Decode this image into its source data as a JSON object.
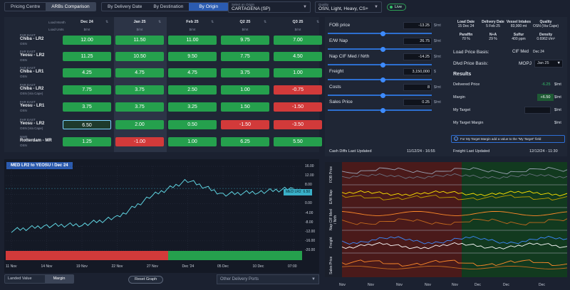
{
  "topbar": {
    "tabs": [
      "Pricing Centre",
      "ARBs Comparison"
    ],
    "views": [
      "By Delivery Date",
      "By Destination",
      "By Origin"
    ],
    "origin_caption": "Select an Origin",
    "origin_value": "CARTAGENA (SP)",
    "quality_caption": "Quality",
    "quality_value": "OSN, Light, Heavy, CS+",
    "live": "Live"
  },
  "grid": {
    "load_month_label": "Load Month",
    "load_units_label": "Load Units",
    "columns": [
      {
        "month": "Dec 24",
        "unit": "$/mt"
      },
      {
        "month": "Jan 25",
        "unit": "$/mt"
      },
      {
        "month": "Feb 25",
        "unit": "$/mt"
      },
      {
        "month": "Q2 25",
        "unit": "$/mt"
      },
      {
        "month": "Q3 25",
        "unit": "$/mt"
      }
    ],
    "rows": [
      {
        "region": "FAR EAST",
        "name": "Chiba - LR2",
        "sub": "OSN",
        "values": [
          "12.00",
          "11.50",
          "11.00",
          "9.75",
          "7.00"
        ],
        "neg": [
          false,
          false,
          false,
          false,
          false
        ]
      },
      {
        "region": "FAR EAST",
        "name": "Yeosu - LR2",
        "sub": "OSN",
        "values": [
          "11.25",
          "10.50",
          "9.50",
          "7.75",
          "4.50"
        ],
        "neg": [
          false,
          false,
          false,
          false,
          false
        ]
      },
      {
        "region": "FAR EAST",
        "name": "Chiba - LR1",
        "sub": "OSN",
        "values": [
          "4.25",
          "4.75",
          "4.75",
          "3.75",
          "1.00"
        ],
        "neg": [
          false,
          false,
          false,
          false,
          false
        ]
      },
      {
        "region": "FAR EAST",
        "name": "Chiba - LR2",
        "sub": "OSN (Via Cape)",
        "values": [
          "7.75",
          "3.75",
          "2.50",
          "1.00",
          "-0.75"
        ],
        "neg": [
          false,
          false,
          false,
          false,
          true
        ]
      },
      {
        "region": "FAR EAST",
        "name": "Yeosu - LR1",
        "sub": "OSN",
        "values": [
          "3.75",
          "3.75",
          "3.25",
          "1.50",
          "-1.50"
        ],
        "neg": [
          false,
          false,
          false,
          false,
          true
        ]
      },
      {
        "region": "FAR EAST",
        "name": "Yeosu - LR2",
        "sub": "OSN (Via Cape)",
        "values": [
          "6.50",
          "2.00",
          "0.50",
          "-1.50",
          "-3.50"
        ],
        "neg": [
          false,
          false,
          false,
          true,
          true
        ]
      },
      {
        "region": "NWE",
        "name": "Rotterdam - MR",
        "sub": "OSN",
        "values": [
          "1.25",
          "-1.00",
          "1.00",
          "6.25",
          "5.50"
        ],
        "neg": [
          false,
          true,
          false,
          false,
          false
        ]
      }
    ]
  },
  "calc": {
    "fields": [
      {
        "label": "FOB price",
        "value": "-13.25",
        "unit": "$/mt",
        "pos": 0.53
      },
      {
        "label": "E/W Nap",
        "value": "26.75",
        "unit": "$/mt",
        "pos": 0.53
      },
      {
        "label": "Nap CIF Med / Nrth",
        "value": "-14.25",
        "unit": "$/mt",
        "pos": 0.53
      },
      {
        "label": "Freight",
        "value": "3,150,000",
        "unit": "$",
        "pos": 0.53
      },
      {
        "label": "Costs",
        "value": "8",
        "unit": "$/mt",
        "pos": 0.53
      },
      {
        "label": "Sales Price",
        "value": "0.25",
        "unit": "$/mt",
        "pos": 0.53
      }
    ],
    "cash_diffs_label": "Cash Diffs Last Updated",
    "cash_diffs_time": "11/12/24 - 16:55",
    "freight_label": "Freight Last Updated",
    "freight_time": "12/12/24 - 11:30"
  },
  "details": {
    "top": [
      {
        "h": "Load Date",
        "v": "15 Dec 24"
      },
      {
        "h": "Delivery Date",
        "v": "5 Feb 25"
      },
      {
        "h": "Vessel Intakes",
        "v": "83,900 mt"
      },
      {
        "h": "Quality",
        "v": "OSN (Via Cape)"
      }
    ],
    "second": [
      {
        "h": "Paraffin",
        "v": "70 %"
      },
      {
        "h": "N+A",
        "v": "29 %"
      },
      {
        "h": "Sulfur",
        "v": "400 ppm"
      },
      {
        "h": "Density",
        "v": "0.6962 t/m³"
      }
    ],
    "load_price_basis_label": "Load Price Basis:",
    "load_price_basis_value": "CIF Med",
    "load_price_basis_month": "Dec 24",
    "dlvd_price_basis_label": "Dlvd Price Basis:",
    "dlvd_price_basis_value": "MOPJ",
    "dlvd_price_basis_month": "Jan 25",
    "results_label": "Results",
    "delivered_price_label": "Delivered Price",
    "delivered_price_value": "-6.25",
    "delivered_price_unit": "$/mt",
    "margin_label": "Margin",
    "margin_value": "+6.50",
    "margin_unit": "$/mt",
    "target_label": "My Target",
    "target_unit": "$/mt",
    "target_margin_label": "My Target Margin",
    "target_margin_unit": "$/mt",
    "note": "For My Target Margin add a value to the \"My Target\" field"
  },
  "chart": {
    "title": "MED LR2 to YEOSU \\ Dec 24",
    "yticks": [
      "16.00",
      "12.00",
      "8.00",
      "4.00",
      "0.00",
      "-4.00",
      "-8.00",
      "-12.00",
      "-16.00",
      "-20.00"
    ],
    "xticks": [
      "11 Nov",
      "14 Nov",
      "19 Nov",
      "22 Nov",
      "27 Nov",
      "Dec '24",
      "05 Dec",
      "10 Dec",
      "07:00"
    ],
    "tag_label": "MED LR2",
    "tag_value": "6.50"
  },
  "chart_data": {
    "type": "line",
    "x": [
      "11 Nov",
      "14 Nov",
      "19 Nov",
      "22 Nov",
      "27 Nov",
      "Dec '24",
      "05 Dec",
      "10 Dec",
      "07:00"
    ],
    "series": [
      {
        "name": "MED LR2",
        "values": [
          -11.5,
          -9.5,
          -9.0,
          -6.0,
          3.5,
          10.0,
          4.0,
          5.0,
          6.5
        ]
      }
    ],
    "ylim": [
      -20,
      16
    ],
    "title": "MED LR2 to YEOSU \\ Dec 24",
    "grid": true
  },
  "footer": {
    "modes": [
      "Landed Value",
      "Margin"
    ],
    "reset": "Reset Graph",
    "ports": "Other Delivery Ports"
  },
  "multi": {
    "labels": [
      "FOB Price",
      "E/W Nap",
      "Nap CIF Med / Nrth",
      "Freight",
      "Sales Price"
    ],
    "xticks": [
      "Nov",
      "Nov",
      "Nov",
      "Nov",
      "Nov",
      "Dec",
      "Dec",
      "Dec"
    ]
  },
  "colors": {
    "green": "#25a04d",
    "red": "#d23a3a",
    "accent": "#2b5bb0",
    "line": "#5fd3e0"
  }
}
